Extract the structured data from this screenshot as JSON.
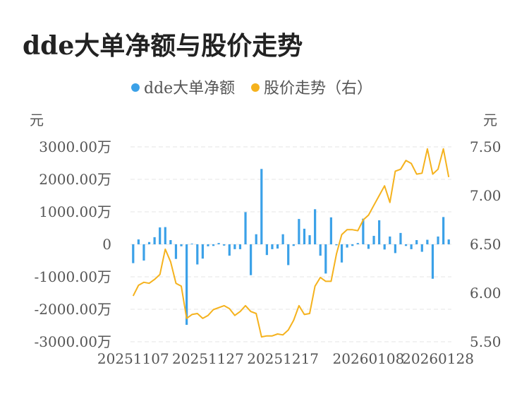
{
  "title": "dde大单净额与股价走势",
  "chart_data": {
    "type": "bar+line",
    "title": "dde大单净额与股价走势",
    "left_unit": "元",
    "right_unit": "元",
    "left_ticks": [
      "3000.00万",
      "2000.00万",
      "1000.00万",
      "0",
      "-1000.00万",
      "-2000.00万",
      "-3000.00万"
    ],
    "right_ticks": [
      "7.50",
      "7.00",
      "6.50",
      "6.00",
      "5.50"
    ],
    "left_ylim": [
      -3000,
      3000
    ],
    "right_ylim": [
      5.5,
      7.5
    ],
    "x_ticks": [
      "20251107",
      "20251127",
      "20251217",
      "20260108",
      "20260128"
    ],
    "legend_position": "top",
    "grid": true,
    "series": [
      {
        "name": "dde大单净额",
        "type": "bar",
        "axis": "left",
        "color": "#3ba1e8",
        "values": [
          -580,
          150,
          -500,
          70,
          220,
          520,
          530,
          130,
          -450,
          -60,
          -2480,
          20,
          -620,
          -440,
          -60,
          -50,
          40,
          -40,
          -350,
          -150,
          -150,
          990,
          -950,
          310,
          2320,
          -330,
          -150,
          -130,
          310,
          -640,
          -50,
          780,
          480,
          280,
          1080,
          -350,
          -900,
          830,
          -30,
          -560,
          -100,
          -50,
          40,
          790,
          -140,
          260,
          740,
          -160,
          240,
          -270,
          350,
          -50,
          -150,
          130,
          -230,
          140,
          -1060,
          240,
          840,
          150
        ]
      },
      {
        "name": "股价走势（右）",
        "type": "line",
        "axis": "right",
        "color": "#f5b21d",
        "values": [
          5.97,
          6.08,
          6.11,
          6.1,
          6.14,
          6.19,
          6.45,
          6.32,
          6.1,
          6.07,
          5.74,
          5.78,
          5.79,
          5.74,
          5.77,
          5.83,
          5.85,
          5.87,
          5.84,
          5.77,
          5.81,
          5.87,
          5.81,
          5.79,
          5.55,
          5.56,
          5.56,
          5.58,
          5.57,
          5.62,
          5.72,
          5.87,
          5.78,
          5.79,
          6.07,
          6.16,
          6.12,
          6.12,
          6.4,
          6.6,
          6.65,
          6.65,
          6.64,
          6.75,
          6.8,
          6.9,
          7.0,
          7.1,
          6.93,
          7.25,
          7.27,
          7.36,
          7.33,
          7.22,
          7.23,
          7.48,
          7.22,
          7.27,
          7.48,
          7.19
        ]
      }
    ]
  }
}
